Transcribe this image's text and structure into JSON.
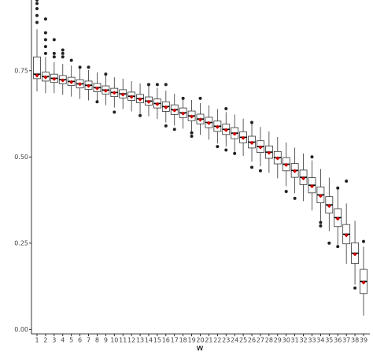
{
  "chart_data": {
    "type": "boxplot",
    "x_label": "w",
    "categories": [
      "1",
      "2",
      "3",
      "4",
      "5",
      "6",
      "7",
      "8",
      "9",
      "10",
      "11",
      "12",
      "13",
      "14",
      "15",
      "16",
      "17",
      "18",
      "19",
      "20",
      "21",
      "22",
      "23",
      "24",
      "25",
      "26",
      "27",
      "28",
      "29",
      "30",
      "31",
      "32",
      "33",
      "34",
      "35",
      "36",
      "37",
      "38",
      "39"
    ],
    "whisker_low": [
      0.69,
      0.685,
      0.685,
      0.68,
      0.675,
      0.668,
      0.664,
      0.657,
      0.65,
      0.643,
      0.639,
      0.632,
      0.625,
      0.618,
      0.61,
      0.6,
      0.591,
      0.582,
      0.573,
      0.564,
      0.55,
      0.539,
      0.53,
      0.515,
      0.503,
      0.486,
      0.473,
      0.454,
      0.438,
      0.415,
      0.395,
      0.372,
      0.345,
      0.315,
      0.285,
      0.245,
      0.19,
      0.13,
      0.04
    ],
    "q1": [
      0.727,
      0.72,
      0.716,
      0.712,
      0.707,
      0.7,
      0.696,
      0.689,
      0.682,
      0.675,
      0.671,
      0.664,
      0.657,
      0.65,
      0.642,
      0.632,
      0.623,
      0.614,
      0.605,
      0.596,
      0.585,
      0.574,
      0.565,
      0.553,
      0.541,
      0.526,
      0.513,
      0.496,
      0.48,
      0.46,
      0.441,
      0.42,
      0.396,
      0.367,
      0.337,
      0.298,
      0.248,
      0.191,
      0.104
    ],
    "median": [
      0.74,
      0.733,
      0.728,
      0.724,
      0.719,
      0.712,
      0.708,
      0.701,
      0.694,
      0.687,
      0.683,
      0.676,
      0.669,
      0.662,
      0.655,
      0.646,
      0.637,
      0.628,
      0.619,
      0.61,
      0.6,
      0.589,
      0.58,
      0.569,
      0.557,
      0.543,
      0.53,
      0.514,
      0.498,
      0.479,
      0.461,
      0.441,
      0.418,
      0.39,
      0.361,
      0.324,
      0.276,
      0.221,
      0.139
    ],
    "q3": [
      0.79,
      0.746,
      0.74,
      0.736,
      0.731,
      0.724,
      0.72,
      0.713,
      0.706,
      0.699,
      0.695,
      0.688,
      0.681,
      0.674,
      0.668,
      0.66,
      0.651,
      0.642,
      0.633,
      0.624,
      0.615,
      0.604,
      0.595,
      0.585,
      0.573,
      0.56,
      0.547,
      0.532,
      0.516,
      0.498,
      0.481,
      0.462,
      0.44,
      0.413,
      0.385,
      0.35,
      0.304,
      0.251,
      0.174
    ],
    "whisker_high": [
      0.87,
      0.79,
      0.775,
      0.77,
      0.765,
      0.758,
      0.752,
      0.745,
      0.738,
      0.731,
      0.727,
      0.72,
      0.713,
      0.706,
      0.7,
      0.692,
      0.683,
      0.674,
      0.665,
      0.656,
      0.65,
      0.639,
      0.63,
      0.623,
      0.611,
      0.6,
      0.587,
      0.574,
      0.558,
      0.542,
      0.527,
      0.51,
      0.49,
      0.465,
      0.44,
      0.41,
      0.365,
      0.315,
      0.24
    ],
    "mean": [
      0.736,
      0.731,
      0.726,
      0.722,
      0.717,
      0.711,
      0.706,
      0.699,
      0.692,
      0.686,
      0.681,
      0.674,
      0.667,
      0.66,
      0.653,
      0.644,
      0.635,
      0.626,
      0.617,
      0.608,
      0.598,
      0.587,
      0.578,
      0.567,
      0.555,
      0.541,
      0.528,
      0.512,
      0.496,
      0.477,
      0.459,
      0.438,
      0.415,
      0.387,
      0.358,
      0.321,
      0.273,
      0.218,
      0.136
    ],
    "outliers": [
      [
        0.89,
        0.91,
        0.93,
        0.945,
        0.955
      ],
      [
        0.8,
        0.82,
        0.84,
        0.86,
        0.9
      ],
      [
        0.79,
        0.8,
        0.84
      ],
      [
        0.79,
        0.8,
        0.81
      ],
      [
        0.78
      ],
      [
        0.76
      ],
      [
        0.76
      ],
      [
        0.66
      ],
      [
        0.74
      ],
      [
        0.63
      ],
      [],
      [],
      [
        0.62
      ],
      [
        0.71
      ],
      [
        0.71
      ],
      [
        0.71,
        0.59
      ],
      [
        0.58
      ],
      [
        0.67
      ],
      [
        0.56,
        0.57
      ],
      [
        0.67
      ],
      [],
      [
        0.53
      ],
      [
        0.64,
        0.52
      ],
      [
        0.51
      ],
      [],
      [
        0.47,
        0.6
      ],
      [
        0.46
      ],
      [],
      [],
      [
        0.4
      ],
      [
        0.38
      ],
      [],
      [
        0.5
      ],
      [
        0.3,
        0.31
      ],
      [
        0.25
      ],
      [
        0.41,
        0.24
      ],
      [
        0.43
      ],
      [
        0.12
      ],
      [
        0.255
      ]
    ],
    "box_color": "#ffffff",
    "line_color": "#333333",
    "mean_color": "#cc0000",
    "ylim": [
      -0.013,
      0.955
    ],
    "yticks": [
      {
        "value": 0,
        "label": "0.00"
      },
      {
        "value": 0.25,
        "label": "0.25"
      },
      {
        "value": 0.5,
        "label": "0.50"
      },
      {
        "value": 0.75,
        "label": "0.75"
      }
    ]
  }
}
